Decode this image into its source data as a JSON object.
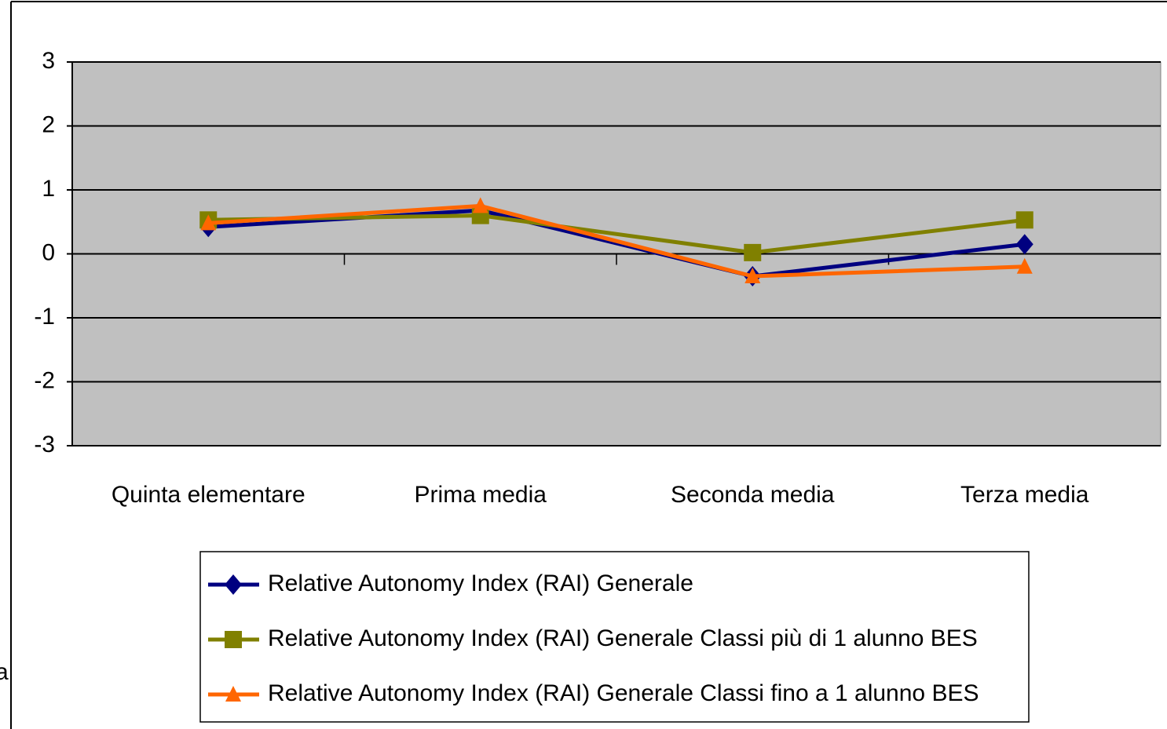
{
  "chart_data": {
    "type": "line",
    "categories": [
      "Quinta elementare",
      "Prima media",
      "Seconda media",
      "Terza media"
    ],
    "series": [
      {
        "name": "Relative Autonomy Index (RAI) Generale",
        "color": "#000080",
        "marker": "diamond",
        "values": [
          0.42,
          0.68,
          -0.35,
          0.15
        ]
      },
      {
        "name": "Relative Autonomy Index (RAI) Generale Classi più di 1 alunno BES",
        "color": "#808000",
        "marker": "square",
        "values": [
          0.53,
          0.6,
          0.02,
          0.53
        ]
      },
      {
        "name": "Relative Autonomy Index (RAI) Generale Classi fino a 1 alunno BES",
        "color": "#ff6600",
        "marker": "triangle",
        "values": [
          0.48,
          0.75,
          -0.35,
          -0.2
        ]
      }
    ],
    "ylim": [
      -3,
      3
    ],
    "yticks": [
      -3,
      -2,
      -1,
      0,
      1,
      2,
      3
    ],
    "grid": true,
    "annotations": [
      "a"
    ]
  }
}
